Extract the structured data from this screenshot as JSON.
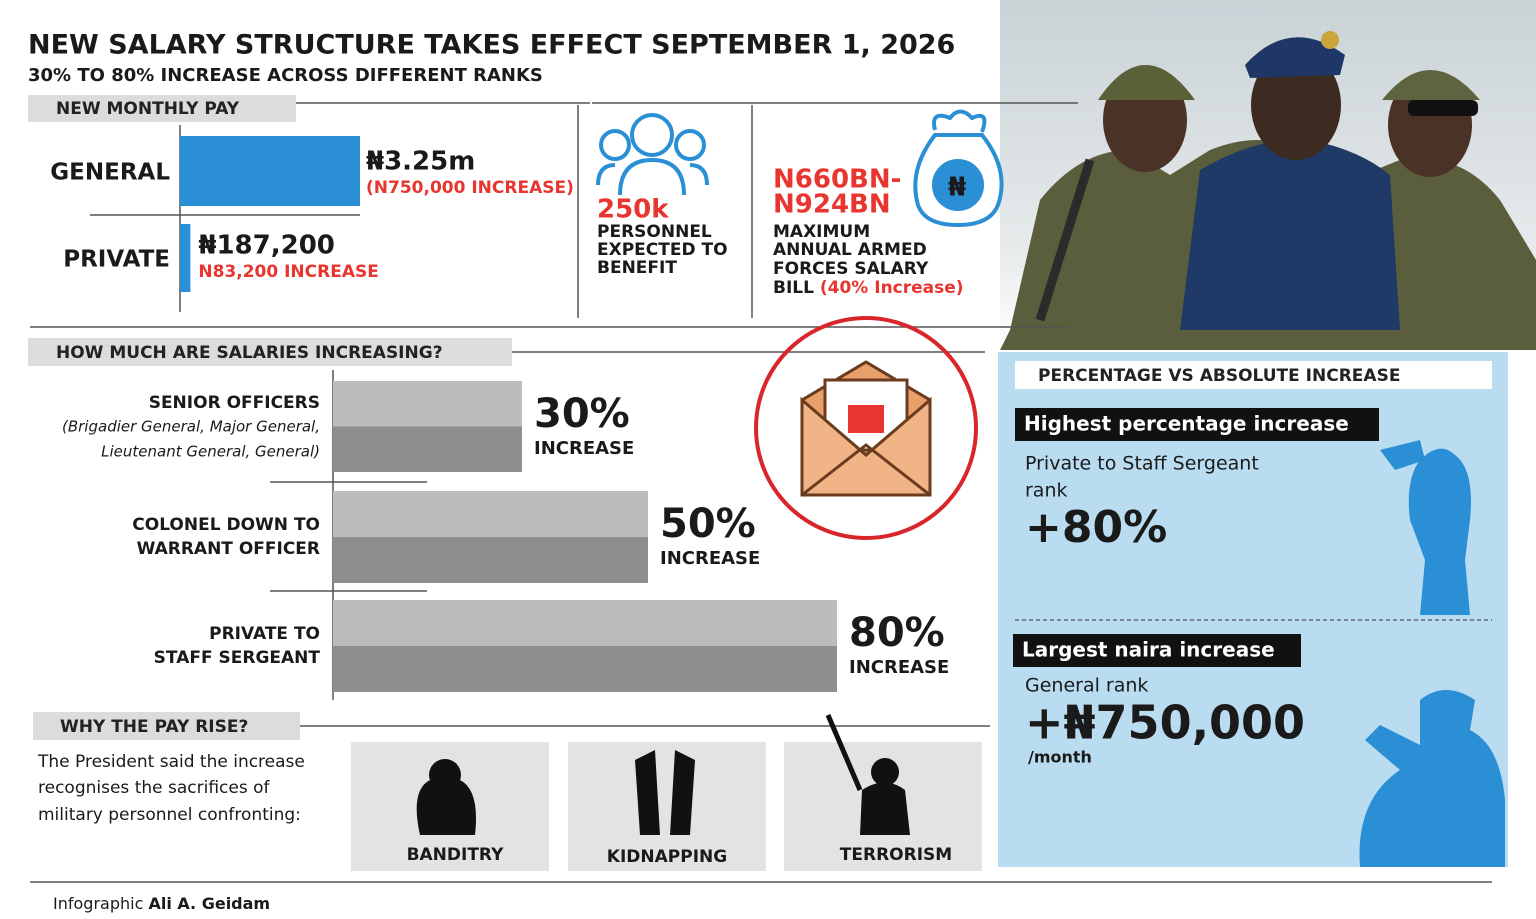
{
  "header": {
    "title": "NEW SALARY STRUCTURE TAKES EFFECT SEPTEMBER 1, 2026",
    "subtitle": "30% TO 80% INCREASE ACROSS DIFFERENT RANKS"
  },
  "chart_data": [
    {
      "type": "bar",
      "orientation": "horizontal",
      "title": "NEW MONTHLY PAY",
      "categories": [
        "GENERAL",
        "PRIVATE"
      ],
      "values": [
        3250000,
        187200
      ],
      "value_labels": [
        "₦3.25m",
        "₦187,200"
      ],
      "annotations": [
        "(N750,000 INCREASE)",
        "N83,200 INCREASE"
      ],
      "color": "#2a8fd4"
    },
    {
      "type": "bar",
      "orientation": "horizontal",
      "title": "HOW MUCH ARE SALARIES INCREASING?",
      "categories": [
        [
          "SENIOR OFFICERS"
        ],
        [
          "COLONEL DOWN TO",
          "WARRANT OFFICER"
        ],
        [
          "PRIVATE TO",
          "STAFF SERGEANT"
        ]
      ],
      "category_note": [
        "(Brigadier General, Major General,",
        "Lieutenant General, General)"
      ],
      "values": [
        30,
        50,
        80
      ],
      "value_labels": [
        "30%",
        "50%",
        "80%"
      ],
      "value_caption": "INCREASE",
      "color": "#bcbcbe",
      "shade_color": "#8e8e90"
    }
  ],
  "stats": {
    "personnel": {
      "value": "250k",
      "lines": [
        "PERSONNEL",
        "EXPECTED TO",
        "BENEFIT"
      ]
    },
    "bill": {
      "value_lines": [
        "N660BN-",
        "N924BN"
      ],
      "lines": [
        "MAXIMUM",
        "ANNUAL ARMED",
        "FORCES SALARY",
        "BILL"
      ],
      "note": "(40% Increase)"
    }
  },
  "panel": {
    "title": "PERCENTAGE  VS ABSOLUTE INCREASE",
    "highest": {
      "label": "Highest percentage increase",
      "lines": [
        "Private to Staff Sergeant",
        "rank"
      ],
      "value": "+80%"
    },
    "largest": {
      "label": "Largest naira increase",
      "rank": "General rank",
      "value": "+₦750,000",
      "unit": "/month"
    }
  },
  "why": {
    "title": "WHY THE PAY RISE?",
    "lines": [
      "The President said the increase",
      "recognises the sacrifices of",
      "military personnel confronting:"
    ],
    "threats": [
      "BANDITRY",
      "KIDNAPPING",
      "TERRORISM"
    ]
  },
  "credit": {
    "prefix": "Infographic",
    "author": "Ali A. Geidam"
  }
}
